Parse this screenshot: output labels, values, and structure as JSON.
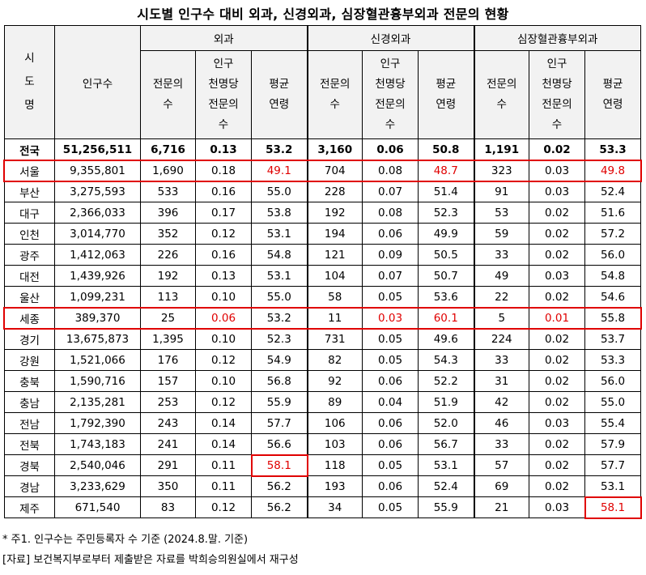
{
  "title": "시도별 인구수 대비 외과, 신경외과, 심장혈관흉부외과 전문의 현황",
  "headers": {
    "sido": "시\n도\n명",
    "population": "인구수",
    "groups": [
      "외과",
      "신경외과",
      "심장혈관흉부외과"
    ],
    "sub": [
      "전문의\n수",
      "인구\n천명당\n전문의\n수",
      "평균\n연령"
    ]
  },
  "rows": [
    {
      "region": "전국",
      "population": "51,256,511",
      "values": [
        "6,716",
        "0.13",
        "53.2",
        "3,160",
        "0.06",
        "50.8",
        "1,191",
        "0.02",
        "53.3"
      ]
    },
    {
      "region": "서울",
      "population": "9,355,801",
      "values": [
        "1,690",
        "0.18",
        "49.1",
        "704",
        "0.08",
        "48.7",
        "323",
        "0.03",
        "49.8"
      ]
    },
    {
      "region": "부산",
      "population": "3,275,593",
      "values": [
        "533",
        "0.16",
        "55.0",
        "228",
        "0.07",
        "51.4",
        "91",
        "0.03",
        "52.4"
      ]
    },
    {
      "region": "대구",
      "population": "2,366,033",
      "values": [
        "396",
        "0.17",
        "53.8",
        "192",
        "0.08",
        "52.3",
        "53",
        "0.02",
        "51.6"
      ]
    },
    {
      "region": "인천",
      "population": "3,014,770",
      "values": [
        "352",
        "0.12",
        "53.1",
        "194",
        "0.06",
        "49.9",
        "59",
        "0.02",
        "57.2"
      ]
    },
    {
      "region": "광주",
      "population": "1,412,063",
      "values": [
        "226",
        "0.16",
        "54.8",
        "121",
        "0.09",
        "50.5",
        "33",
        "0.02",
        "56.0"
      ]
    },
    {
      "region": "대전",
      "population": "1,439,926",
      "values": [
        "192",
        "0.13",
        "53.1",
        "104",
        "0.07",
        "50.7",
        "49",
        "0.03",
        "54.8"
      ]
    },
    {
      "region": "울산",
      "population": "1,099,231",
      "values": [
        "113",
        "0.10",
        "55.0",
        "58",
        "0.05",
        "53.6",
        "22",
        "0.02",
        "54.6"
      ]
    },
    {
      "region": "세종",
      "population": "389,370",
      "values": [
        "25",
        "0.06",
        "53.2",
        "11",
        "0.03",
        "60.1",
        "5",
        "0.01",
        "55.8"
      ]
    },
    {
      "region": "경기",
      "population": "13,675,873",
      "values": [
        "1,395",
        "0.10",
        "52.3",
        "731",
        "0.05",
        "49.6",
        "224",
        "0.02",
        "53.7"
      ]
    },
    {
      "region": "강원",
      "population": "1,521,066",
      "values": [
        "176",
        "0.12",
        "54.9",
        "82",
        "0.05",
        "54.3",
        "33",
        "0.02",
        "53.3"
      ]
    },
    {
      "region": "충북",
      "population": "1,590,716",
      "values": [
        "157",
        "0.10",
        "56.8",
        "92",
        "0.06",
        "52.2",
        "31",
        "0.02",
        "56.0"
      ]
    },
    {
      "region": "충남",
      "population": "2,135,281",
      "values": [
        "253",
        "0.12",
        "55.9",
        "89",
        "0.04",
        "51.9",
        "42",
        "0.02",
        "55.0"
      ]
    },
    {
      "region": "전남",
      "population": "1,792,390",
      "values": [
        "243",
        "0.14",
        "57.7",
        "106",
        "0.06",
        "52.0",
        "46",
        "0.03",
        "55.4"
      ]
    },
    {
      "region": "전북",
      "population": "1,743,183",
      "values": [
        "241",
        "0.14",
        "56.6",
        "103",
        "0.06",
        "56.7",
        "33",
        "0.02",
        "57.9"
      ]
    },
    {
      "region": "경북",
      "population": "2,540,046",
      "values": [
        "291",
        "0.11",
        "58.1",
        "118",
        "0.05",
        "53.1",
        "57",
        "0.02",
        "57.7"
      ]
    },
    {
      "region": "경남",
      "population": "3,233,629",
      "values": [
        "350",
        "0.11",
        "56.2",
        "193",
        "0.06",
        "52.4",
        "69",
        "0.02",
        "53.1"
      ]
    },
    {
      "region": "제주",
      "population": "671,540",
      "values": [
        "83",
        "0.12",
        "56.2",
        "34",
        "0.05",
        "55.9",
        "21",
        "0.03",
        "58.1"
      ]
    }
  ],
  "highlight_color": "#e00000",
  "red_cells": [
    {
      "row": 1,
      "col": 2
    },
    {
      "row": 1,
      "col": 5
    },
    {
      "row": 1,
      "col": 8
    },
    {
      "row": 8,
      "col": 1
    },
    {
      "row": 8,
      "col": 4
    },
    {
      "row": 8,
      "col": 5
    },
    {
      "row": 8,
      "col": 7
    },
    {
      "row": 15,
      "col": 2
    },
    {
      "row": 17,
      "col": 8
    }
  ],
  "highlighted_rows": [
    1,
    8
  ],
  "boxed_cells": [
    {
      "row": 15,
      "col": 2
    },
    {
      "row": 17,
      "col": 8
    }
  ],
  "notes": {
    "note1": "* 주1. 인구수는 주민등록자 수 기준 (2024.8.말. 기준)",
    "source": "[자료] 보건복지부로부터 제출받은 자료를 박희승의원실에서 재구성"
  }
}
